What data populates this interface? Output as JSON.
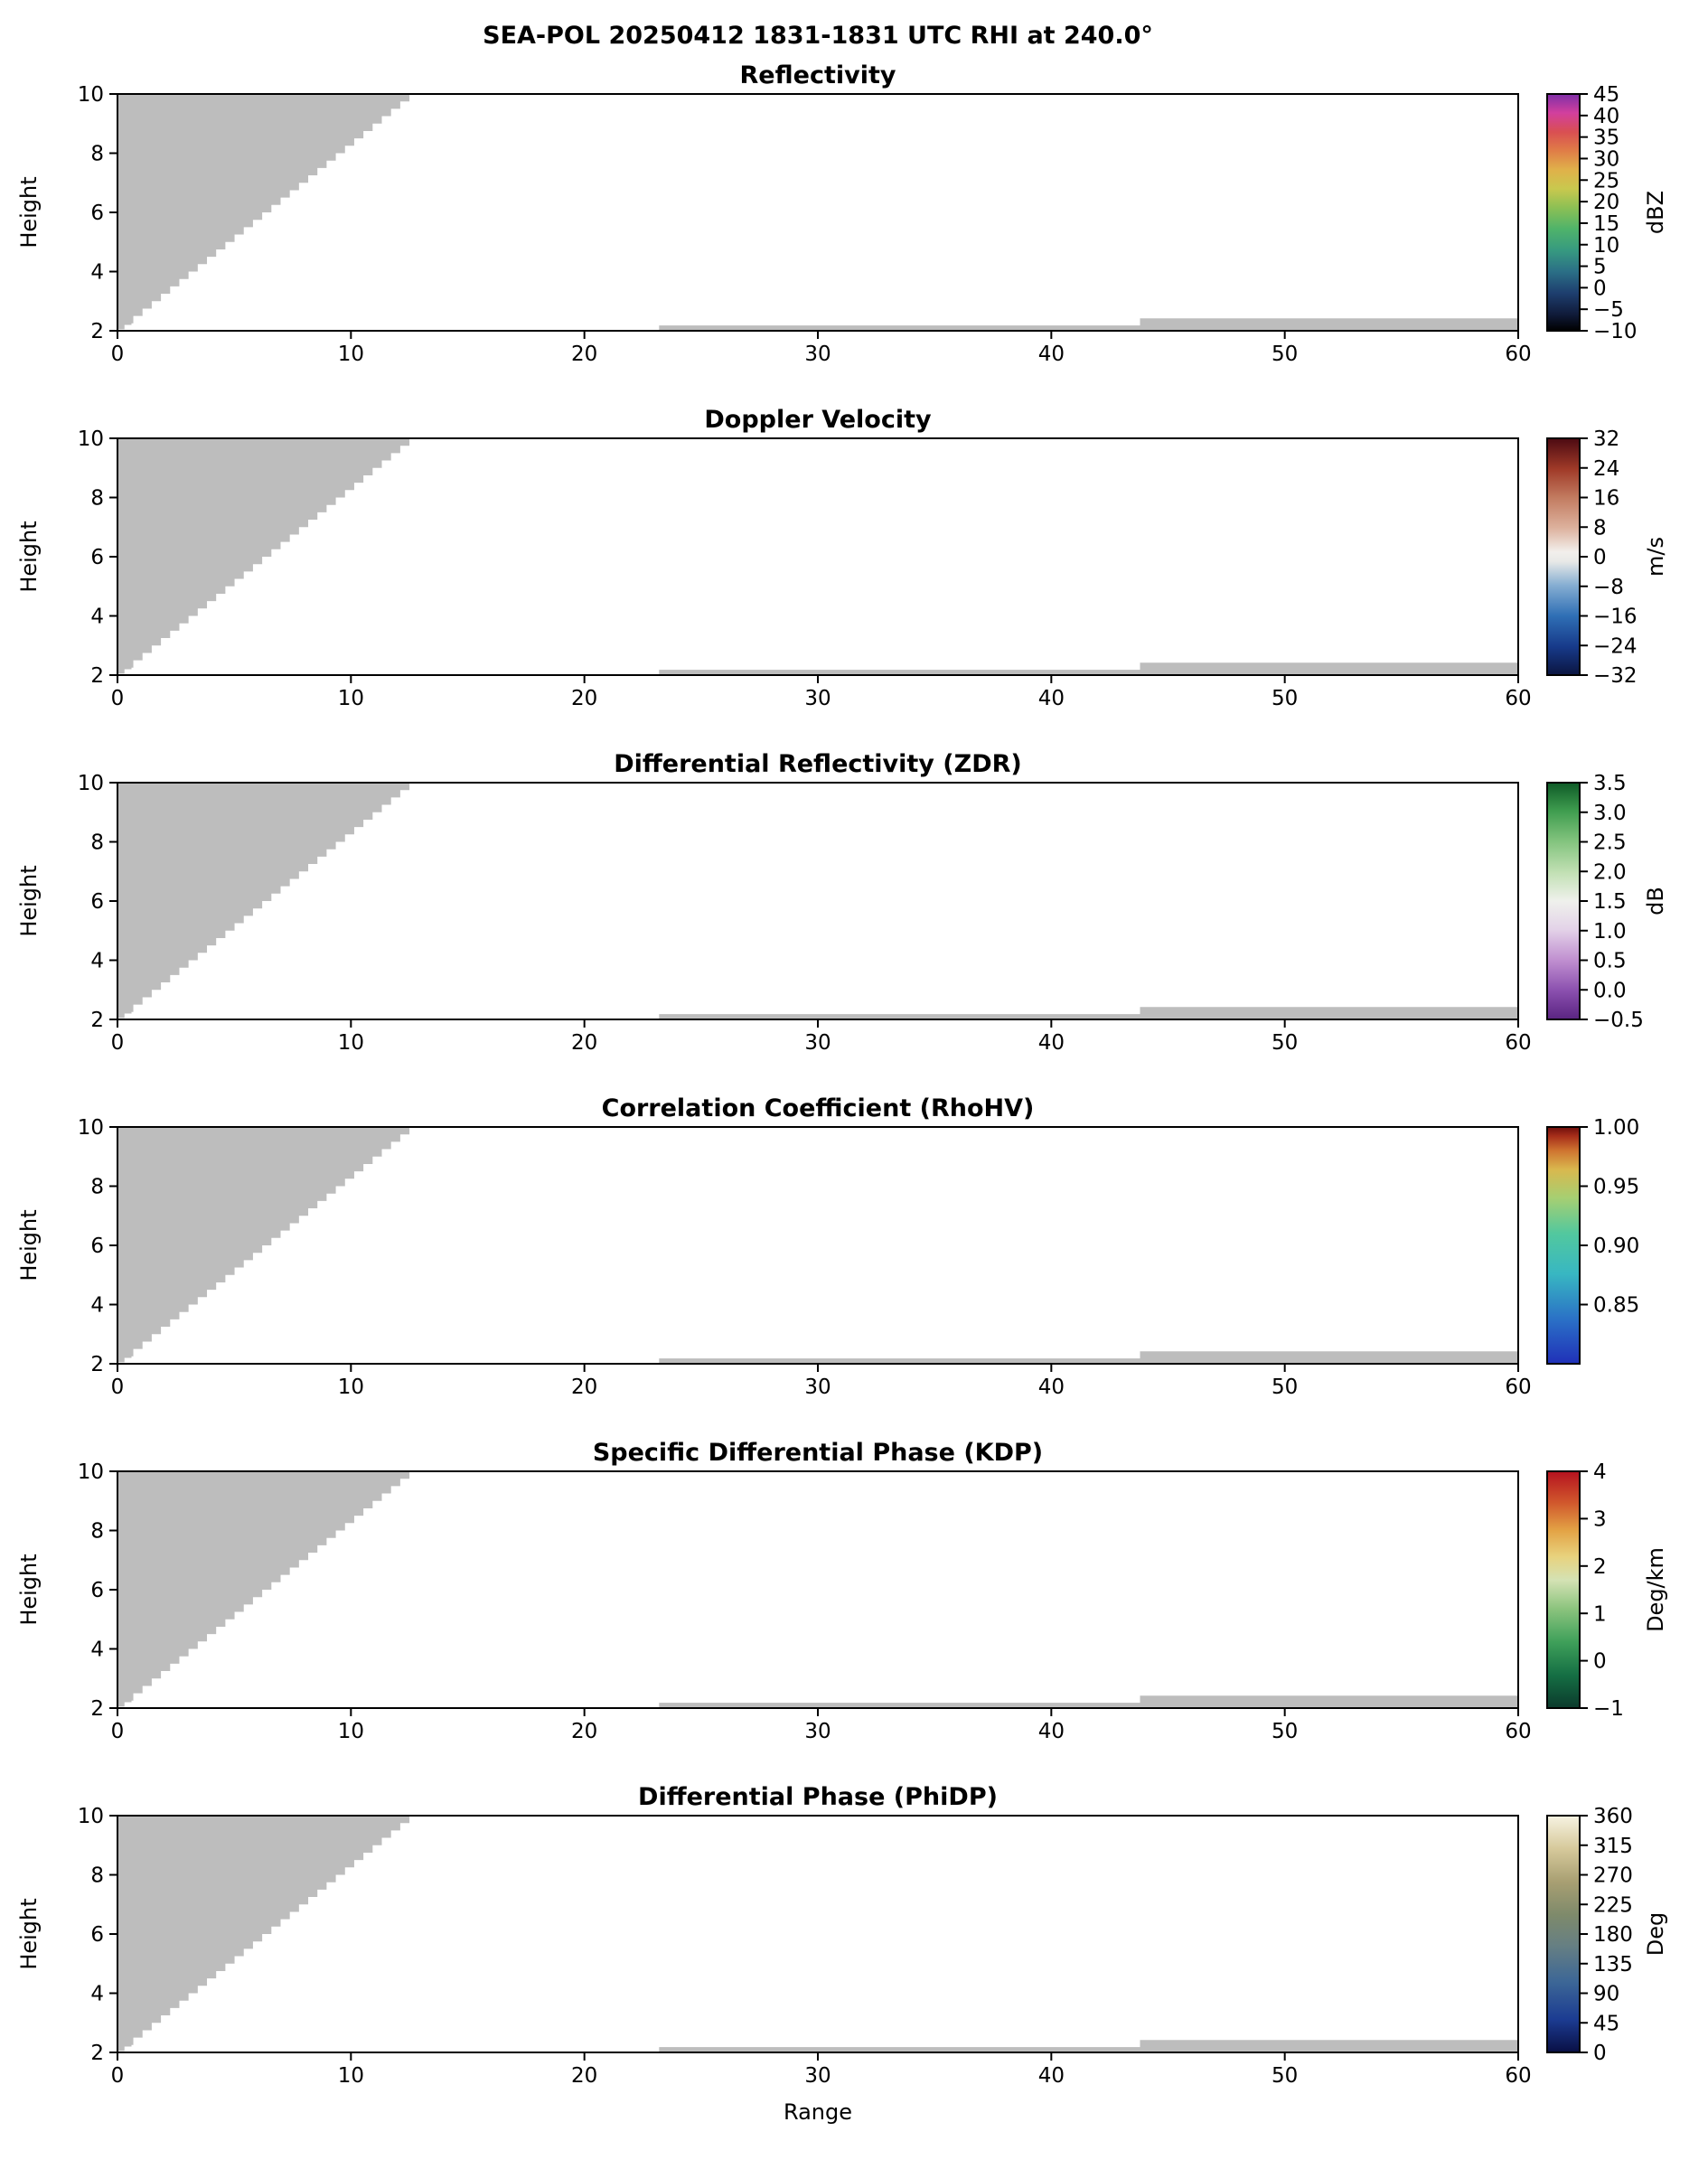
{
  "chart_data": {
    "type": "heatmap",
    "suptitle": "SEA-POL 20250412 1831-1831 UTC RHI at 240.0°",
    "xlabel": "Range",
    "ylabel": "Height",
    "x_range": [
      0,
      60
    ],
    "x_ticks": [
      0,
      10,
      20,
      30,
      40,
      50,
      60
    ],
    "y_range": [
      2,
      10
    ],
    "y_ticks": [
      2,
      4,
      6,
      8,
      10
    ],
    "grid": false,
    "plot_background": "#ffffff",
    "mask_color": "#bdbdbd",
    "frame_color": "#000000",
    "masked_wedge": {
      "diag_start": [
        0.6,
        2.2
      ],
      "diag_end": [
        12.9,
        10
      ],
      "foot_x": 0.3,
      "foot_y": 2.05,
      "step": 0.25
    },
    "masked_strips": [
      {
        "x": [
          23.2,
          43.8
        ],
        "y": [
          2.0,
          2.18
        ]
      },
      {
        "x": [
          43.8,
          60.0
        ],
        "y": [
          2.0,
          2.42
        ]
      }
    ],
    "panels": [
      {
        "title": "Reflectivity",
        "slug": "reflectivity",
        "colorbar": {
          "unit": "dBZ",
          "range": [
            -10,
            45
          ],
          "ticks": [
            {
              "v": -10,
              "label": "−10"
            },
            {
              "v": -5,
              "label": "−5"
            },
            {
              "v": 0,
              "label": "0"
            },
            {
              "v": 5,
              "label": "5"
            },
            {
              "v": 10,
              "label": "10"
            },
            {
              "v": 15,
              "label": "15"
            },
            {
              "v": 20,
              "label": "20"
            },
            {
              "v": 25,
              "label": "25"
            },
            {
              "v": 30,
              "label": "30"
            },
            {
              "v": 35,
              "label": "35"
            },
            {
              "v": 40,
              "label": "40"
            },
            {
              "v": 45,
              "label": "45"
            }
          ],
          "gradient": [
            {
              "o": 0.0,
              "c": "#000000"
            },
            {
              "o": 0.07,
              "c": "#101b3a"
            },
            {
              "o": 0.16,
              "c": "#1e3f6f"
            },
            {
              "o": 0.25,
              "c": "#2b6f86"
            },
            {
              "o": 0.34,
              "c": "#379a80"
            },
            {
              "o": 0.43,
              "c": "#4fb36a"
            },
            {
              "o": 0.52,
              "c": "#8cc054"
            },
            {
              "o": 0.6,
              "c": "#c9c84e"
            },
            {
              "o": 0.68,
              "c": "#e0b14a"
            },
            {
              "o": 0.76,
              "c": "#e07d47"
            },
            {
              "o": 0.84,
              "c": "#d94f52"
            },
            {
              "o": 0.92,
              "c": "#d23f9e"
            },
            {
              "o": 1.0,
              "c": "#7e2fa8"
            }
          ]
        }
      },
      {
        "title": "Doppler Velocity",
        "slug": "doppler-velocity",
        "colorbar": {
          "unit": "m/s",
          "range": [
            -32,
            32
          ],
          "ticks": [
            {
              "v": -32,
              "label": "−32"
            },
            {
              "v": -24,
              "label": "−24"
            },
            {
              "v": -16,
              "label": "−16"
            },
            {
              "v": -8,
              "label": "−8"
            },
            {
              "v": 0,
              "label": "0"
            },
            {
              "v": 8,
              "label": "8"
            },
            {
              "v": 16,
              "label": "16"
            },
            {
              "v": 24,
              "label": "24"
            },
            {
              "v": 32,
              "label": "32"
            }
          ],
          "gradient": [
            {
              "o": 0.0,
              "c": "#0b1540"
            },
            {
              "o": 0.12,
              "c": "#173a8a"
            },
            {
              "o": 0.25,
              "c": "#2f6fb5"
            },
            {
              "o": 0.38,
              "c": "#86aed2"
            },
            {
              "o": 0.48,
              "c": "#e8e9e7"
            },
            {
              "o": 0.52,
              "c": "#f2efec"
            },
            {
              "o": 0.62,
              "c": "#ddb29e"
            },
            {
              "o": 0.75,
              "c": "#c27b60"
            },
            {
              "o": 0.87,
              "c": "#a03a28"
            },
            {
              "o": 1.0,
              "c": "#4c0a12"
            }
          ]
        }
      },
      {
        "title": "Differential Reflectivity (ZDR)",
        "slug": "zdr",
        "colorbar": {
          "unit": "dB",
          "range": [
            -0.5,
            3.5
          ],
          "ticks": [
            {
              "v": -0.5,
              "label": "−0.5"
            },
            {
              "v": 0.0,
              "label": "0.0"
            },
            {
              "v": 0.5,
              "label": "0.5"
            },
            {
              "v": 1.0,
              "label": "1.0"
            },
            {
              "v": 1.5,
              "label": "1.5"
            },
            {
              "v": 2.0,
              "label": "2.0"
            },
            {
              "v": 2.5,
              "label": "2.5"
            },
            {
              "v": 3.0,
              "label": "3.0"
            },
            {
              "v": 3.5,
              "label": "3.5"
            }
          ],
          "gradient": [
            {
              "o": 0.0,
              "c": "#5a2482"
            },
            {
              "o": 0.12,
              "c": "#8a4fae"
            },
            {
              "o": 0.25,
              "c": "#c08fd0"
            },
            {
              "o": 0.38,
              "c": "#e3d2e8"
            },
            {
              "o": 0.5,
              "c": "#eff1ec"
            },
            {
              "o": 0.62,
              "c": "#c2e0b4"
            },
            {
              "o": 0.75,
              "c": "#84c47f"
            },
            {
              "o": 0.88,
              "c": "#3f9d4f"
            },
            {
              "o": 1.0,
              "c": "#0e5a27"
            }
          ]
        }
      },
      {
        "title": "Correlation Coefficient (RhoHV)",
        "slug": "rhohv",
        "colorbar": {
          "unit": "",
          "range": [
            0.8,
            1.0
          ],
          "ticks": [
            {
              "v": 0.85,
              "label": "0.85"
            },
            {
              "v": 0.9,
              "label": "0.90"
            },
            {
              "v": 0.95,
              "label": "0.95"
            },
            {
              "v": 1.0,
              "label": "1.00"
            }
          ],
          "gradient": [
            {
              "o": 0.0,
              "c": "#2030b8"
            },
            {
              "o": 0.18,
              "c": "#2a6ec6"
            },
            {
              "o": 0.38,
              "c": "#38b7c2"
            },
            {
              "o": 0.55,
              "c": "#52c89e"
            },
            {
              "o": 0.7,
              "c": "#a6cf72"
            },
            {
              "o": 0.82,
              "c": "#d9b84e"
            },
            {
              "o": 0.9,
              "c": "#cf7430"
            },
            {
              "o": 0.96,
              "c": "#a82f1a"
            },
            {
              "o": 1.0,
              "c": "#6e0e0c"
            }
          ]
        }
      },
      {
        "title": "Specific Differential Phase (KDP)",
        "slug": "kdp",
        "colorbar": {
          "unit": "Deg/km",
          "range": [
            -1,
            4
          ],
          "ticks": [
            {
              "v": -1,
              "label": "−1"
            },
            {
              "v": 0,
              "label": "0"
            },
            {
              "v": 1,
              "label": "1"
            },
            {
              "v": 2,
              "label": "2"
            },
            {
              "v": 3,
              "label": "3"
            },
            {
              "v": 4,
              "label": "4"
            }
          ],
          "gradient": [
            {
              "o": 0.0,
              "c": "#0b3a2c"
            },
            {
              "o": 0.14,
              "c": "#156f44"
            },
            {
              "o": 0.28,
              "c": "#3fa05a"
            },
            {
              "o": 0.42,
              "c": "#8cc47e"
            },
            {
              "o": 0.54,
              "c": "#d4e2b4"
            },
            {
              "o": 0.64,
              "c": "#e8d27e"
            },
            {
              "o": 0.75,
              "c": "#e3a345"
            },
            {
              "o": 0.87,
              "c": "#d0562c"
            },
            {
              "o": 1.0,
              "c": "#b5121f"
            }
          ]
        }
      },
      {
        "title": "Differential Phase (PhiDP)",
        "slug": "phidp",
        "colorbar": {
          "unit": "Deg",
          "range": [
            0,
            360
          ],
          "ticks": [
            {
              "v": 0,
              "label": "0"
            },
            {
              "v": 45,
              "label": "45"
            },
            {
              "v": 90,
              "label": "90"
            },
            {
              "v": 135,
              "label": "135"
            },
            {
              "v": 180,
              "label": "180"
            },
            {
              "v": 225,
              "label": "225"
            },
            {
              "v": 270,
              "label": "270"
            },
            {
              "v": 315,
              "label": "315"
            },
            {
              "v": 360,
              "label": "360"
            }
          ],
          "gradient": [
            {
              "o": 0.0,
              "c": "#090f44"
            },
            {
              "o": 0.14,
              "c": "#1c3c92"
            },
            {
              "o": 0.3,
              "c": "#3d6796"
            },
            {
              "o": 0.45,
              "c": "#667f83"
            },
            {
              "o": 0.58,
              "c": "#7e8a6b"
            },
            {
              "o": 0.72,
              "c": "#a89f72"
            },
            {
              "o": 0.86,
              "c": "#d6c99b"
            },
            {
              "o": 1.0,
              "c": "#f7f3e2"
            }
          ]
        }
      }
    ]
  }
}
